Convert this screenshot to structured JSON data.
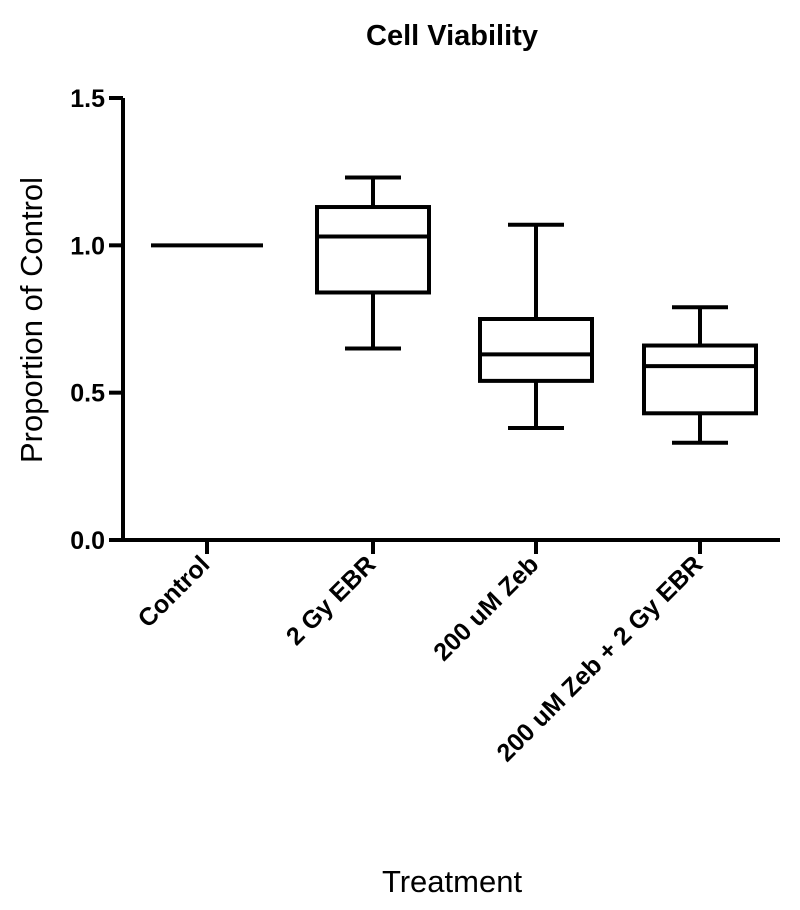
{
  "chart_data": {
    "type": "box",
    "title": "Cell Viability",
    "xlabel": "Treatment",
    "ylabel": "Proportion of Control",
    "ylim": [
      0,
      1.5
    ],
    "yticks": [
      0.0,
      0.5,
      1.0,
      1.5
    ],
    "ytick_labels": [
      "0.0",
      "0.5",
      "1.0",
      "1.5"
    ],
    "categories": [
      "Control",
      "2 Gy EBR",
      "200 uM Zeb",
      "200 uM Zeb + 2 Gy EBR"
    ],
    "boxes": [
      {
        "category": "Control",
        "min": 1.0,
        "q1": 1.0,
        "median": 1.0,
        "q3": 1.0,
        "max": 1.0
      },
      {
        "category": "2 Gy EBR",
        "min": 0.65,
        "q1": 0.84,
        "median": 1.03,
        "q3": 1.13,
        "max": 1.23
      },
      {
        "category": "200 uM Zeb",
        "min": 0.38,
        "q1": 0.54,
        "median": 0.63,
        "q3": 0.75,
        "max": 1.07
      },
      {
        "category": "200 uM Zeb + 2 Gy EBR",
        "min": 0.33,
        "q1": 0.43,
        "median": 0.59,
        "q3": 0.66,
        "max": 0.79
      }
    ],
    "grid": false,
    "legend": "none"
  }
}
